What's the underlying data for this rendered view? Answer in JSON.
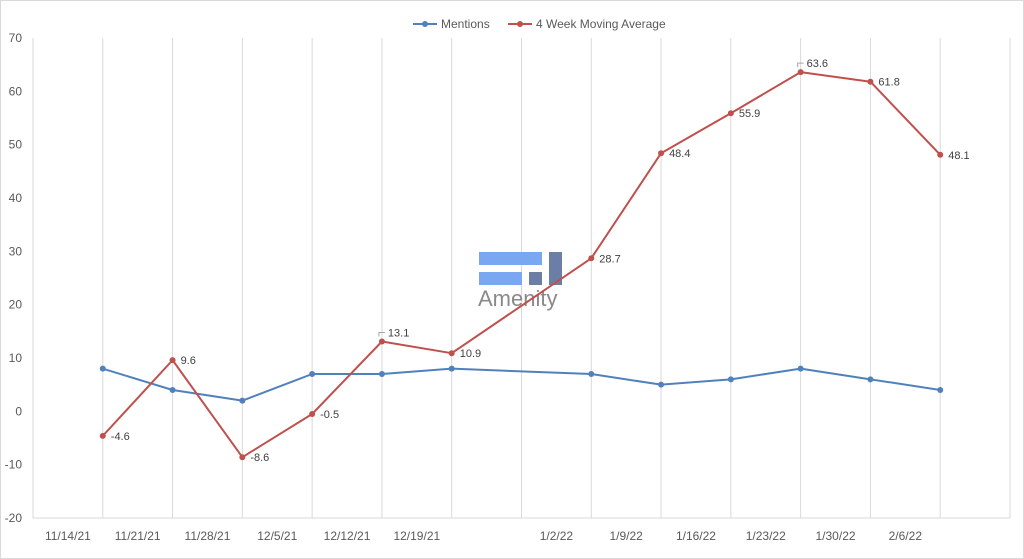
{
  "chart_data": {
    "type": "line",
    "title": "",
    "xlabel": "",
    "ylabel": "",
    "ylim": [
      -20,
      70
    ],
    "yticks": [
      -20,
      -10,
      0,
      10,
      20,
      30,
      40,
      50,
      60,
      70
    ],
    "x_tick_labels": [
      "11/14/21",
      "11/21/21",
      "11/28/21",
      "12/5/21",
      "12/12/21",
      "12/19/21",
      "1/2/22",
      "1/9/22",
      "1/16/22",
      "1/23/22",
      "1/30/22",
      "2/6/22"
    ],
    "grid": "vertical",
    "legend_position": "top",
    "x": [
      "2021-11-12",
      "2021-11-19",
      "2021-11-26",
      "2021-12-03",
      "2021-12-10",
      "2021-12-17",
      "2021-12-31",
      "2022-01-07",
      "2022-01-14",
      "2022-01-21",
      "2022-01-28",
      "2022-02-04"
    ],
    "series": [
      {
        "name": "Mentions",
        "color": "#4f81bd",
        "values": [
          8,
          4,
          2,
          7,
          7,
          8,
          7,
          5,
          6,
          8,
          6,
          4
        ]
      },
      {
        "name": "4 Week Moving Average",
        "color": "#c0504d",
        "values": [
          -4.6,
          9.6,
          -8.6,
          -0.5,
          13.1,
          10.9,
          28.7,
          48.4,
          55.9,
          63.6,
          61.8,
          48.1
        ],
        "data_labels": [
          "-4.6",
          "9.6",
          "-8.6",
          "-0.5",
          "13.1",
          "10.9",
          "28.7",
          "48.4",
          "55.9",
          "63.6",
          "61.8",
          "48.1"
        ]
      }
    ]
  },
  "watermark": {
    "text": "Amenity",
    "colors": {
      "bars": "#7aa7f2",
      "dark": "#6b7fa6"
    }
  }
}
